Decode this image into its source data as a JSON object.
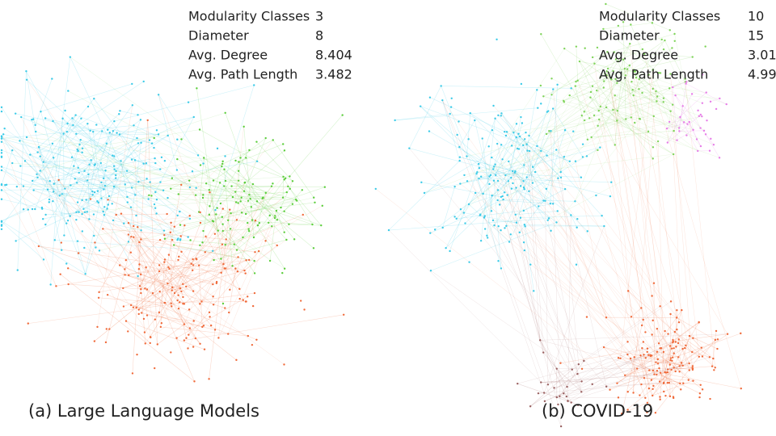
{
  "panels": [
    {
      "caption": "(a) Large Language Models",
      "stats": [
        {
          "label": "Modularity Classes",
          "value": 3
        },
        {
          "label": "Diameter",
          "value": 8
        },
        {
          "label": "Avg. Degree",
          "value": 8.404
        },
        {
          "label": "Avg. Path Length",
          "value": 3.482
        }
      ]
    },
    {
      "caption": "(b) COVID-19",
      "stats": [
        {
          "label": "Modularity Classes",
          "value": 10
        },
        {
          "label": "Diameter",
          "value": 15
        },
        {
          "label": "Avg. Degree",
          "value": 3.01
        },
        {
          "label": "Avg. Path Length",
          "value": 4.99
        }
      ]
    }
  ]
}
